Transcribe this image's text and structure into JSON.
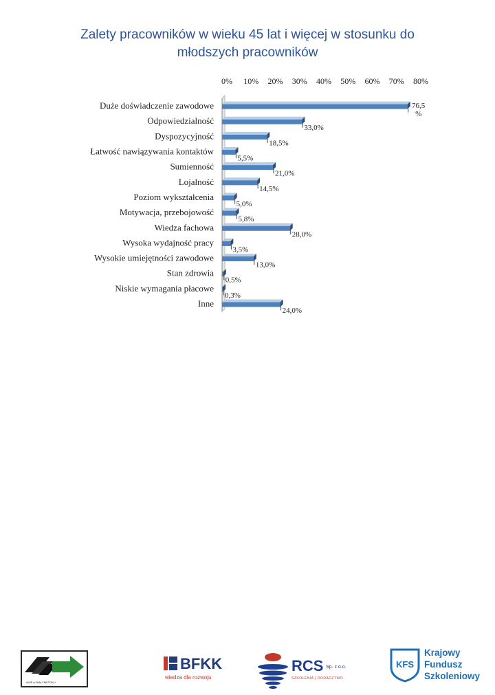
{
  "title_line1": "Zalety pracowników w wieku 45 lat i więcej w stosunku do",
  "title_line2": "młodszych pracowników",
  "chart_data": {
    "type": "bar",
    "orientation": "horizontal",
    "categories": [
      "Duże doświadczenie zawodowe",
      "Odpowiedzialność",
      "Dyspozycyjność",
      "Łatwość nawiązywania kontaktów",
      "Sumienność",
      "Lojalność",
      "Poziom wykształcenia",
      "Motywacja, przebojowość",
      "Wiedza fachowa",
      "Wysoka wydajność pracy",
      "Wysokie umiejętności zawodowe",
      "Stan zdrowia",
      "Niskie wymagania płacowe",
      "Inne"
    ],
    "values": [
      76.5,
      33.0,
      18.5,
      5.5,
      21.0,
      14.5,
      5.0,
      5.8,
      28.0,
      3.5,
      13.0,
      0.5,
      0.3,
      24.0
    ],
    "data_labels": [
      "76,5 %",
      "33,0%",
      "18,5%",
      "5,5%",
      "21,0%",
      "14,5%",
      "5,0%",
      "5,8%",
      "28,0%",
      "3,5%",
      "13,0%",
      "0,5%",
      "0,3%",
      "24,0%"
    ],
    "x_tick_labels": [
      "0%",
      "10%",
      "20%",
      "30%",
      "40%",
      "50%",
      "60%",
      "70%",
      "80%"
    ],
    "xlim": [
      0,
      80
    ],
    "axis_position": "top",
    "grid": false,
    "legend": "none",
    "bar_color": "#4f81bd",
    "style": "3d"
  },
  "footer": {
    "wup_text": "WUP w BIAŁYMSTOKU",
    "bfkk_name": "BFKK",
    "bfkk_tagline": "wiedza dla rozwoju",
    "rcs_name": "RCS",
    "rcs_suffix": "Sp. z o.o.",
    "rcs_tagline": "SZKOLENIA | DORADZTWO",
    "kfs_badge": "KFS",
    "kfs_line1": "Krajowy",
    "kfs_line2": "Fundusz",
    "kfs_line3": "Szkoleniowy"
  },
  "colors": {
    "title": "#2f5597",
    "bar": "#4f81bd",
    "bar_dark": "#2c4d75",
    "bar_light": "#b8cce4"
  }
}
